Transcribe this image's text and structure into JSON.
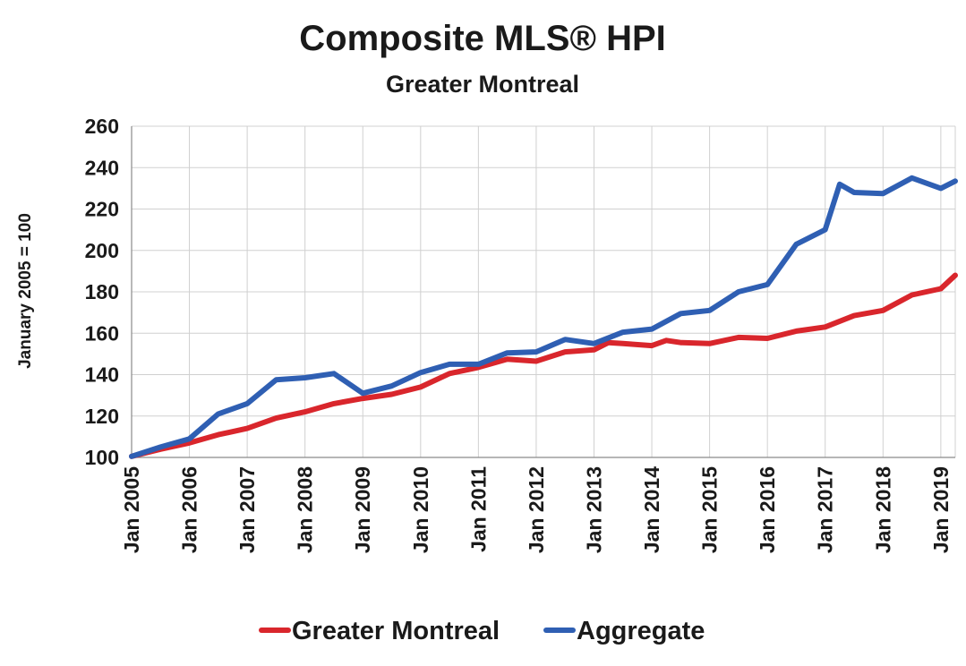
{
  "chart_data": {
    "type": "line",
    "title": "Composite MLS® HPI",
    "subtitle": "Greater Montreal",
    "ylabel": "January 2005 = 100",
    "xlabel": "",
    "ylim": [
      100,
      260
    ],
    "yticks": [
      100,
      120,
      140,
      160,
      180,
      200,
      220,
      240,
      260
    ],
    "xlim": [
      "Jan 2005",
      "Apr 2019"
    ],
    "xtick_labels": [
      "Jan 2005",
      "Jan 2006",
      "Jan 2007",
      "Jan 2008",
      "Jan 2009",
      "Jan 2010",
      "Jan 2011",
      "Jan 2012",
      "Jan 2013",
      "Jan 2014",
      "Jan 2015",
      "Jan 2016",
      "Jan 2017",
      "Jan 2018",
      "Jan 2019"
    ],
    "grid": true,
    "legend_position": "bottom",
    "series": [
      {
        "name": "Greater Montreal",
        "color": "#d9262c",
        "points": [
          [
            "Jan 2005",
            100.5
          ],
          [
            "Jul 2005",
            104
          ],
          [
            "Jan 2006",
            107
          ],
          [
            "Jul 2006",
            111
          ],
          [
            "Jan 2007",
            114
          ],
          [
            "Jul 2007",
            119
          ],
          [
            "Jan 2008",
            122
          ],
          [
            "Jul 2008",
            126
          ],
          [
            "Jan 2009",
            128.5
          ],
          [
            "Jul 2009",
            130.5
          ],
          [
            "Jan 2010",
            134
          ],
          [
            "Jul 2010",
            140.5
          ],
          [
            "Jan 2011",
            143.5
          ],
          [
            "Jul 2011",
            147.5
          ],
          [
            "Jan 2012",
            146.5
          ],
          [
            "Jul 2012",
            151
          ],
          [
            "Jan 2013",
            152
          ],
          [
            "Apr 2013",
            155.5
          ],
          [
            "Jul 2013",
            155
          ],
          [
            "Jan 2014",
            154
          ],
          [
            "Apr 2014",
            156.5
          ],
          [
            "Jul 2014",
            155.5
          ],
          [
            "Jan 2015",
            155
          ],
          [
            "Jul 2015",
            158
          ],
          [
            "Jan 2016",
            157.5
          ],
          [
            "Jul 2016",
            161
          ],
          [
            "Jan 2017",
            163
          ],
          [
            "Jul 2017",
            168.5
          ],
          [
            "Jan 2018",
            171
          ],
          [
            "Jul 2018",
            178.5
          ],
          [
            "Jan 2019",
            181.5
          ],
          [
            "Apr 2019",
            188
          ]
        ]
      },
      {
        "name": "Aggregate",
        "color": "#2f5fb3",
        "points": [
          [
            "Jan 2005",
            100.5
          ],
          [
            "Jul 2005",
            105
          ],
          [
            "Jan 2006",
            109
          ],
          [
            "Jul 2006",
            121
          ],
          [
            "Jan 2007",
            126
          ],
          [
            "Jul 2007",
            137.5
          ],
          [
            "Jan 2008",
            138.5
          ],
          [
            "Jul 2008",
            140.5
          ],
          [
            "Jan 2009",
            131
          ],
          [
            "Jul 2009",
            134.5
          ],
          [
            "Jan 2010",
            141
          ],
          [
            "Jul 2010",
            145
          ],
          [
            "Jan 2011",
            145
          ],
          [
            "Jul 2011",
            150.5
          ],
          [
            "Jan 2012",
            151
          ],
          [
            "Jul 2012",
            157
          ],
          [
            "Jan 2013",
            155
          ],
          [
            "Jul 2013",
            160.5
          ],
          [
            "Jan 2014",
            162
          ],
          [
            "Jul 2014",
            169.5
          ],
          [
            "Jan 2015",
            171
          ],
          [
            "Jul 2015",
            180
          ],
          [
            "Jan 2016",
            183.5
          ],
          [
            "Jul 2016",
            203
          ],
          [
            "Jan 2017",
            210
          ],
          [
            "Apr 2017",
            232
          ],
          [
            "Jul 2017",
            228
          ],
          [
            "Jan 2018",
            227.5
          ],
          [
            "Jul 2018",
            235
          ],
          [
            "Jan 2019",
            230
          ],
          [
            "Apr 2019",
            233.5
          ]
        ]
      }
    ]
  }
}
